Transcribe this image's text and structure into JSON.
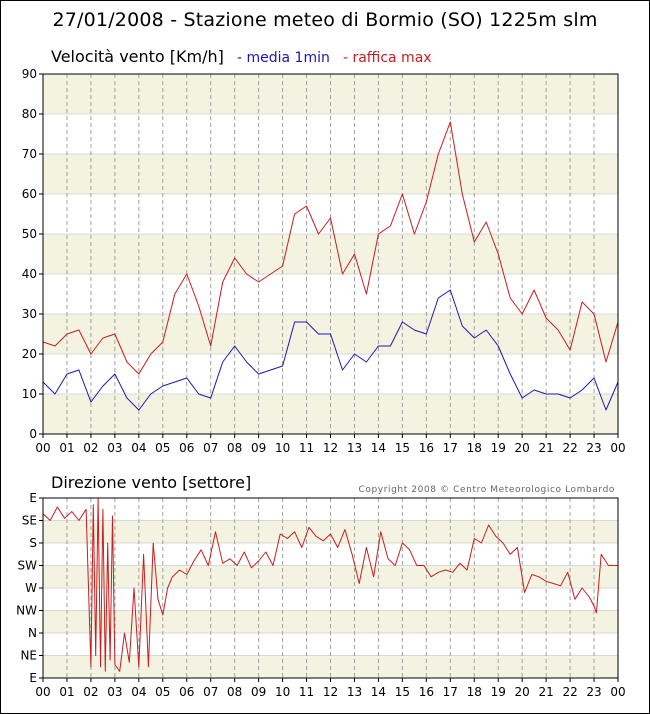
{
  "title": "27/01/2008 - Stazione meteo di Bormio (SO) 1225m slm",
  "copyright": "Copyright 2008 © Centro Meteorologico Lombardo",
  "colors": {
    "band": "#f4f3e1",
    "mean": "#1a1ab4",
    "gust": "#c81e1e",
    "direction": "#c81e1e",
    "grid": "#a0a0a0",
    "frame": "#000000"
  },
  "chart_data": [
    {
      "type": "line",
      "title": "Velocità vento [Km/h]",
      "legend": [
        "- media 1min",
        "- raffica max"
      ],
      "legend_placement": "top",
      "x_ticks": [
        "00",
        "01",
        "02",
        "03",
        "04",
        "05",
        "06",
        "07",
        "08",
        "09",
        "10",
        "11",
        "12",
        "13",
        "14",
        "15",
        "16",
        "17",
        "18",
        "19",
        "20",
        "21",
        "22",
        "23",
        "00"
      ],
      "y_ticks": [
        "0",
        "10",
        "20",
        "30",
        "40",
        "50",
        "60",
        "70",
        "80",
        "90"
      ],
      "ylim": [
        0,
        90
      ],
      "xlim": [
        0,
        24
      ],
      "grid": true,
      "series": [
        {
          "name": "- media 1min",
          "x": [
            0,
            0.5,
            1,
            1.5,
            2,
            2.5,
            3,
            3.5,
            4,
            4.5,
            5,
            5.5,
            6,
            6.5,
            7,
            7.5,
            8,
            8.5,
            9,
            9.5,
            10,
            10.5,
            11,
            11.5,
            12,
            12.5,
            13,
            13.5,
            14,
            14.5,
            15,
            15.5,
            16,
            16.5,
            17,
            17.5,
            18,
            18.5,
            19,
            19.5,
            20,
            20.5,
            21,
            21.5,
            22,
            22.5,
            23,
            23.5,
            24
          ],
          "values": [
            13,
            10,
            15,
            16,
            8,
            12,
            15,
            9,
            6,
            10,
            12,
            13,
            14,
            10,
            9,
            18,
            22,
            18,
            15,
            16,
            17,
            28,
            28,
            25,
            25,
            16,
            20,
            18,
            22,
            22,
            28,
            26,
            25,
            34,
            36,
            27,
            24,
            26,
            22,
            15,
            9,
            11,
            10,
            10,
            9,
            11,
            14,
            6,
            13
          ]
        },
        {
          "name": "- raffica max",
          "x": [
            0,
            0.5,
            1,
            1.5,
            2,
            2.5,
            3,
            3.5,
            4,
            4.5,
            5,
            5.5,
            6,
            6.5,
            7,
            7.5,
            8,
            8.5,
            9,
            9.5,
            10,
            10.5,
            11,
            11.5,
            12,
            12.5,
            13,
            13.5,
            14,
            14.5,
            15,
            15.5,
            16,
            16.5,
            17,
            17.5,
            18,
            18.5,
            19,
            19.5,
            20,
            20.5,
            21,
            21.5,
            22,
            22.5,
            23,
            23.5,
            24
          ],
          "values": [
            23,
            22,
            25,
            26,
            20,
            24,
            25,
            18,
            15,
            20,
            23,
            35,
            40,
            32,
            22,
            38,
            44,
            40,
            38,
            40,
            42,
            55,
            57,
            50,
            54,
            40,
            45,
            35,
            50,
            52,
            60,
            50,
            58,
            70,
            78,
            60,
            48,
            53,
            45,
            34,
            30,
            36,
            29,
            26,
            21,
            33,
            30,
            18,
            28
          ]
        }
      ]
    },
    {
      "type": "line",
      "title": "Direzione vento [settore]",
      "x_ticks": [
        "00",
        "01",
        "02",
        "03",
        "04",
        "05",
        "06",
        "07",
        "08",
        "09",
        "10",
        "11",
        "12",
        "13",
        "14",
        "15",
        "16",
        "17",
        "18",
        "19",
        "20",
        "21",
        "22",
        "23",
        "00"
      ],
      "y_ticks": [
        "E",
        "NE",
        "N",
        "NW",
        "W",
        "SW",
        "S",
        "SE",
        "E"
      ],
      "ylim": [
        0,
        8
      ],
      "xlim": [
        0,
        24
      ],
      "grid": true,
      "series": [
        {
          "name": "Direzione vento",
          "x": [
            0,
            0.3,
            0.6,
            0.9,
            1.2,
            1.5,
            1.8,
            1.9,
            2.0,
            2.1,
            2.2,
            2.3,
            2.4,
            2.5,
            2.6,
            2.7,
            2.8,
            2.9,
            3.0,
            3.2,
            3.4,
            3.6,
            3.8,
            4.0,
            4.2,
            4.4,
            4.6,
            4.8,
            5.0,
            5.2,
            5.4,
            5.7,
            6.0,
            6.3,
            6.6,
            6.9,
            7.2,
            7.5,
            7.8,
            8.1,
            8.4,
            8.7,
            9.0,
            9.3,
            9.6,
            9.9,
            10.2,
            10.5,
            10.8,
            11.1,
            11.4,
            11.7,
            12.0,
            12.3,
            12.6,
            12.9,
            13.2,
            13.5,
            13.8,
            14.1,
            14.4,
            14.7,
            15.0,
            15.3,
            15.6,
            15.9,
            16.2,
            16.5,
            16.8,
            17.1,
            17.4,
            17.7,
            18.0,
            18.3,
            18.6,
            18.9,
            19.2,
            19.5,
            19.8,
            20.1,
            20.4,
            20.7,
            21.0,
            21.3,
            21.6,
            21.9,
            22.2,
            22.5,
            22.8,
            23.0,
            23.1,
            23.3,
            23.6,
            24.0
          ],
          "values": [
            7.3,
            7.0,
            7.6,
            7.1,
            7.4,
            7.0,
            7.5,
            4.0,
            0.5,
            7.7,
            1.0,
            8.0,
            0.5,
            7.5,
            0.3,
            6.0,
            0.8,
            7.2,
            0.6,
            0.3,
            2.0,
            0.7,
            4.0,
            0.5,
            5.5,
            0.5,
            6.0,
            3.5,
            2.8,
            4.0,
            4.5,
            4.8,
            4.6,
            5.2,
            5.7,
            5.0,
            6.5,
            5.1,
            5.3,
            5.0,
            5.6,
            4.9,
            5.2,
            5.6,
            5.0,
            6.4,
            6.2,
            6.5,
            5.8,
            6.7,
            6.3,
            6.1,
            6.4,
            5.8,
            6.6,
            5.5,
            4.2,
            5.8,
            4.5,
            6.5,
            5.3,
            5.0,
            6.0,
            5.7,
            5.0,
            5.0,
            4.5,
            4.7,
            4.8,
            4.7,
            5.1,
            4.8,
            6.2,
            6.0,
            6.8,
            6.3,
            6.0,
            5.5,
            5.8,
            3.8,
            4.6,
            4.5,
            4.3,
            4.2,
            4.1,
            4.7,
            3.5,
            4.0,
            3.6,
            3.2,
            2.9,
            5.5,
            5.0,
            5.0
          ]
        }
      ]
    }
  ]
}
